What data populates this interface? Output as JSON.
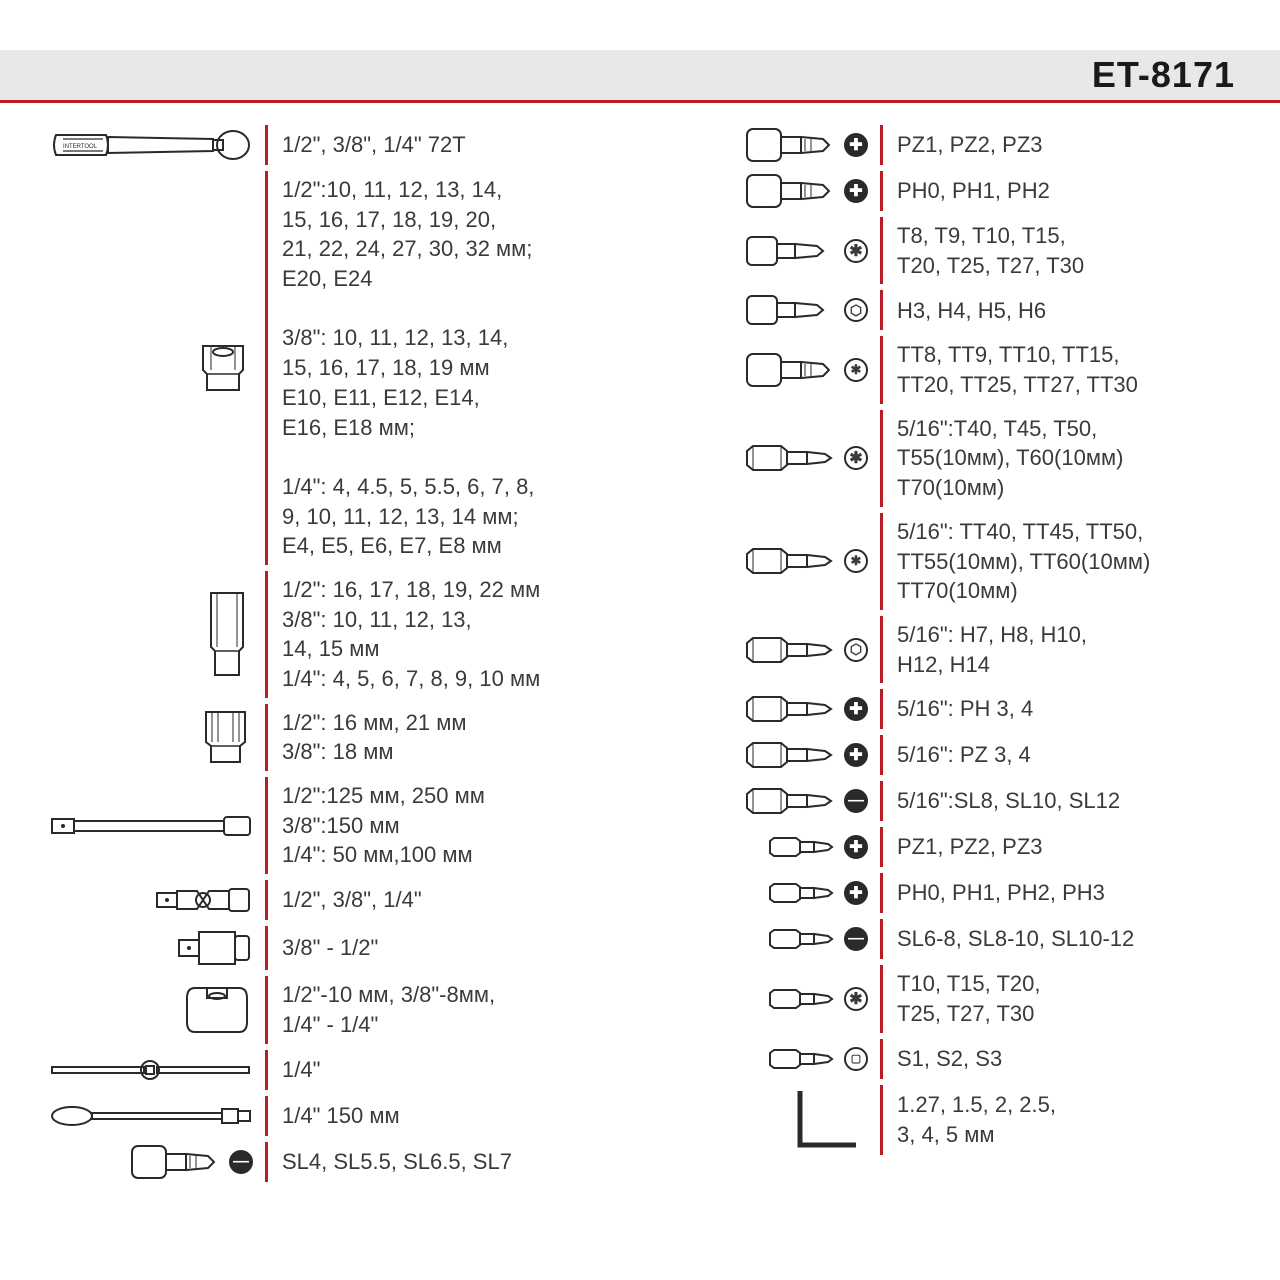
{
  "header": {
    "title": "ET-8171"
  },
  "colors": {
    "accent": "#b81c24",
    "headerBg": "#e8e8e8",
    "text": "#3a3a3a",
    "iconStroke": "#2a2a2a"
  },
  "left": [
    {
      "icon": "ratchet",
      "text": "1/2\", 3/8\", 1/4\" 72T"
    },
    {
      "icon": "socket",
      "text": "1/2\":10, 11, 12, 13, 14,\n15, 16, 17, 18, 19, 20,\n21, 22, 24, 27, 30, 32 мм;\nE20, E24\n\n3/8\": 10, 11, 12, 13, 14,\n15, 16, 17, 18, 19 мм\nE10, E11, E12, E14,\nE16, E18 мм;\n\n1/4\": 4, 4.5, 5, 5.5, 6, 7, 8,\n9, 10, 11, 12, 13, 14 мм;\nE4, E5, E6, E7, E8 мм"
    },
    {
      "icon": "deep-socket",
      "text": "1/2\": 16, 17, 18, 19, 22 мм\n3/8\": 10, 11, 12, 13,\n14, 15 мм\n1/4\": 4, 5, 6, 7, 8, 9, 10 мм"
    },
    {
      "icon": "spark-socket",
      "text": "1/2\": 16 мм, 21 мм\n3/8\": 18 мм"
    },
    {
      "icon": "extension",
      "text": "1/2\":125 мм, 250 мм\n3/8\":150 мм\n1/4\": 50 мм,100 мм"
    },
    {
      "icon": "ujoint",
      "text": "1/2\", 3/8\", 1/4\""
    },
    {
      "icon": "adapter",
      "text": "3/8\" - 1/2\""
    },
    {
      "icon": "bit-adapter",
      "text": "1/2\"-10 мм, 3/8\"-8мм,\n1/4\" - 1/4\""
    },
    {
      "icon": "tbar",
      "text": "1/4\""
    },
    {
      "icon": "spinner",
      "text": "1/4\" 150 мм"
    },
    {
      "icon": "socket-bit",
      "tip": "slot",
      "text": "SL4, SL5.5, SL6.5, SL7"
    }
  ],
  "right": [
    {
      "icon": "socket-bit",
      "tip": "pz",
      "text": "PZ1, PZ2, PZ3"
    },
    {
      "icon": "socket-bit",
      "tip": "ph",
      "text": "PH0, PH1, PH2"
    },
    {
      "icon": "socket-bit-sm",
      "tip": "torx",
      "text": "T8, T9, T10, T15,\nT20, T25, T27, T30"
    },
    {
      "icon": "socket-bit-sm",
      "tip": "hex",
      "text": "H3, H4, H5, H6"
    },
    {
      "icon": "socket-bit",
      "tip": "torx-sec",
      "text": "TT8, TT9, TT10, TT15,\nTT20, TT25, TT27, TT30"
    },
    {
      "icon": "hex-bit",
      "tip": "torx",
      "text": "5/16\":T40, T45, T50,\nT55(10мм), T60(10мм)\nT70(10мм)"
    },
    {
      "icon": "hex-bit",
      "tip": "torx-sec",
      "text": "5/16\": TT40, TT45, TT50,\nTT55(10мм), TT60(10мм)\nTT70(10мм)"
    },
    {
      "icon": "hex-bit",
      "tip": "hex",
      "text": "5/16\": H7, H8, H10,\nH12, H14"
    },
    {
      "icon": "hex-bit",
      "tip": "ph",
      "text": "5/16\": PH 3, 4"
    },
    {
      "icon": "hex-bit",
      "tip": "pz",
      "text": "5/16\": PZ 3, 4"
    },
    {
      "icon": "hex-bit",
      "tip": "slot",
      "text": "5/16\":SL8, SL10, SL12"
    },
    {
      "icon": "short-bit",
      "tip": "pz",
      "text": "PZ1, PZ2, PZ3"
    },
    {
      "icon": "short-bit",
      "tip": "ph",
      "text": "PH0, PH1, PH2, PH3"
    },
    {
      "icon": "short-bit",
      "tip": "slot",
      "text": "SL6-8, SL8-10, SL10-12"
    },
    {
      "icon": "short-bit",
      "tip": "torx",
      "text": "T10, T15, T20,\nT25, T27, T30"
    },
    {
      "icon": "short-bit",
      "tip": "sq",
      "text": "S1, S2, S3"
    },
    {
      "icon": "hex-key",
      "text": "1.27, 1.5, 2, 2.5,\n3, 4, 5 мм"
    }
  ],
  "tipGlyphs": {
    "pz": "✚",
    "ph": "✚",
    "torx": "✱",
    "torx-sec": "✱",
    "hex": "⬡",
    "slot": "—",
    "sq": "◻"
  },
  "iconDims": {
    "default": 200,
    "socket": 60,
    "bit": 90
  }
}
